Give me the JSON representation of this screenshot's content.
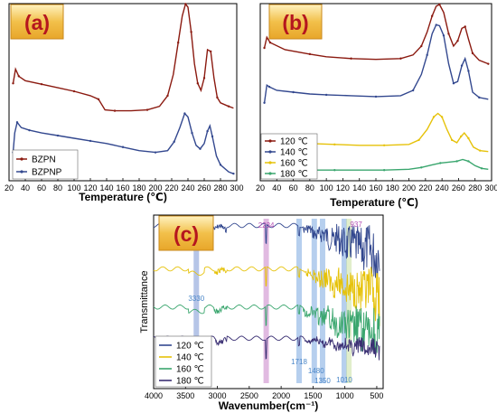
{
  "chart_data": [
    {
      "panel": "(a)",
      "type": "line",
      "xlabel": "Temperature (℃)",
      "ylabel": "",
      "xlim": [
        20,
        300
      ],
      "xticks": [
        20,
        40,
        60,
        80,
        100,
        120,
        140,
        160,
        180,
        200,
        220,
        240,
        260,
        280,
        300
      ],
      "legend": "bottom-left",
      "series": [
        {
          "name": "BZPN",
          "color": "#8b1a10",
          "points": [
            [
              25,
              0.55
            ],
            [
              28,
              0.63
            ],
            [
              32,
              0.59
            ],
            [
              40,
              0.565
            ],
            [
              60,
              0.545
            ],
            [
              80,
              0.525
            ],
            [
              100,
              0.505
            ],
            [
              120,
              0.48
            ],
            [
              130,
              0.46
            ],
            [
              138,
              0.4
            ],
            [
              150,
              0.395
            ],
            [
              170,
              0.395
            ],
            [
              190,
              0.4
            ],
            [
              205,
              0.42
            ],
            [
              215,
              0.48
            ],
            [
              222,
              0.6
            ],
            [
              228,
              0.78
            ],
            [
              233,
              0.93
            ],
            [
              237,
              0.998
            ],
            [
              240,
              0.98
            ],
            [
              244,
              0.84
            ],
            [
              248,
              0.66
            ],
            [
              252,
              0.55
            ],
            [
              256,
              0.51
            ],
            [
              260,
              0.58
            ],
            [
              264,
              0.74
            ],
            [
              268,
              0.73
            ],
            [
              272,
              0.58
            ],
            [
              276,
              0.47
            ],
            [
              280,
              0.44
            ],
            [
              290,
              0.42
            ],
            [
              296,
              0.41
            ]
          ]
        },
        {
          "name": "BZPNP",
          "color": "#33488f",
          "points": [
            [
              25,
              0.16
            ],
            [
              27,
              0.27
            ],
            [
              30,
              0.33
            ],
            [
              35,
              0.3
            ],
            [
              45,
              0.285
            ],
            [
              60,
              0.27
            ],
            [
              80,
              0.255
            ],
            [
              100,
              0.24
            ],
            [
              120,
              0.225
            ],
            [
              140,
              0.21
            ],
            [
              160,
              0.19
            ],
            [
              180,
              0.17
            ],
            [
              200,
              0.16
            ],
            [
              215,
              0.17
            ],
            [
              223,
              0.22
            ],
            [
              230,
              0.3
            ],
            [
              236,
              0.38
            ],
            [
              240,
              0.36
            ],
            [
              245,
              0.27
            ],
            [
              250,
              0.2
            ],
            [
              255,
              0.18
            ],
            [
              260,
              0.21
            ],
            [
              264,
              0.28
            ],
            [
              267,
              0.31
            ],
            [
              270,
              0.25
            ],
            [
              275,
              0.14
            ],
            [
              280,
              0.09
            ],
            [
              290,
              0.05
            ],
            [
              296,
              0.04
            ]
          ]
        }
      ]
    },
    {
      "panel": "(b)",
      "type": "line",
      "xlabel": "Temperature (℃)",
      "ylabel": "",
      "xlim": [
        20,
        300
      ],
      "xticks": [
        20,
        40,
        60,
        80,
        100,
        120,
        140,
        160,
        180,
        200,
        220,
        240,
        260,
        280,
        300
      ],
      "legend": "bottom-left",
      "series": [
        {
          "name": "120 ℃",
          "color": "#8b1a10",
          "points": [
            [
              25,
              0.75
            ],
            [
              28,
              0.81
            ],
            [
              32,
              0.78
            ],
            [
              50,
              0.74
            ],
            [
              80,
              0.715
            ],
            [
              100,
              0.7
            ],
            [
              130,
              0.69
            ],
            [
              160,
              0.685
            ],
            [
              190,
              0.69
            ],
            [
              205,
              0.71
            ],
            [
              215,
              0.76
            ],
            [
              222,
              0.84
            ],
            [
              228,
              0.93
            ],
            [
              233,
              0.985
            ],
            [
              237,
              0.995
            ],
            [
              242,
              0.95
            ],
            [
              248,
              0.83
            ],
            [
              254,
              0.76
            ],
            [
              259,
              0.79
            ],
            [
              264,
              0.86
            ],
            [
              268,
              0.87
            ],
            [
              272,
              0.8
            ],
            [
              277,
              0.72
            ],
            [
              285,
              0.68
            ],
            [
              296,
              0.66
            ]
          ]
        },
        {
          "name": "140 ℃",
          "color": "#33488f",
          "points": [
            [
              25,
              0.44
            ],
            [
              28,
              0.54
            ],
            [
              31,
              0.53
            ],
            [
              40,
              0.51
            ],
            [
              60,
              0.5
            ],
            [
              80,
              0.49
            ],
            [
              100,
              0.485
            ],
            [
              130,
              0.48
            ],
            [
              160,
              0.475
            ],
            [
              190,
              0.48
            ],
            [
              205,
              0.51
            ],
            [
              215,
              0.6
            ],
            [
              222,
              0.71
            ],
            [
              228,
              0.83
            ],
            [
              233,
              0.88
            ],
            [
              237,
              0.875
            ],
            [
              242,
              0.82
            ],
            [
              248,
              0.66
            ],
            [
              254,
              0.55
            ],
            [
              259,
              0.56
            ],
            [
              264,
              0.65
            ],
            [
              268,
              0.69
            ],
            [
              272,
              0.62
            ],
            [
              277,
              0.5
            ],
            [
              285,
              0.47
            ],
            [
              296,
              0.46
            ]
          ]
        },
        {
          "name": "160 ℃",
          "color": "#e6c20a",
          "points": [
            [
              25,
              0.22
            ],
            [
              30,
              0.225
            ],
            [
              50,
              0.215
            ],
            [
              80,
              0.21
            ],
            [
              110,
              0.205
            ],
            [
              140,
              0.2
            ],
            [
              170,
              0.2
            ],
            [
              200,
              0.205
            ],
            [
              212,
              0.23
            ],
            [
              222,
              0.29
            ],
            [
              230,
              0.36
            ],
            [
              235,
              0.38
            ],
            [
              240,
              0.36
            ],
            [
              246,
              0.29
            ],
            [
              252,
              0.23
            ],
            [
              258,
              0.215
            ],
            [
              263,
              0.25
            ],
            [
              267,
              0.27
            ],
            [
              272,
              0.24
            ],
            [
              278,
              0.19
            ],
            [
              286,
              0.17
            ],
            [
              296,
              0.165
            ]
          ]
        },
        {
          "name": "180 ℃",
          "color": "#3aa66e",
          "points": [
            [
              25,
              0.055
            ],
            [
              30,
              0.06
            ],
            [
              50,
              0.06
            ],
            [
              80,
              0.06
            ],
            [
              110,
              0.06
            ],
            [
              140,
              0.06
            ],
            [
              170,
              0.06
            ],
            [
              200,
              0.065
            ],
            [
              215,
              0.075
            ],
            [
              228,
              0.09
            ],
            [
              238,
              0.1
            ],
            [
              248,
              0.105
            ],
            [
              258,
              0.11
            ],
            [
              265,
              0.12
            ],
            [
              272,
              0.11
            ],
            [
              280,
              0.085
            ],
            [
              288,
              0.07
            ],
            [
              296,
              0.065
            ]
          ]
        }
      ]
    },
    {
      "panel": "(c)",
      "type": "line",
      "xlabel": "Wavenumber(cm⁻¹)",
      "ylabel": "Transmittance",
      "xlim": [
        4000,
        400
      ],
      "xticks": [
        4000,
        3500,
        3000,
        2500,
        2000,
        1500,
        1000,
        500
      ],
      "legend": "bottom-left",
      "highlight_bands": [
        {
          "wavenumber": 3330,
          "label": "3330",
          "label_color": "#4a86c8",
          "band_color": "#7a95d4"
        },
        {
          "wavenumber": 2234,
          "label": "2234",
          "label_color": "#b44fb4",
          "band_color": "#c882c8"
        },
        {
          "wavenumber": 1718,
          "label": "1718",
          "label_color": "#4a86c8",
          "band_color": "#7aa7e0"
        },
        {
          "wavenumber": 1480,
          "label": "1480",
          "label_color": "#4a86c8",
          "band_color": "#7aa7e0"
        },
        {
          "wavenumber": 1350,
          "label": "1350",
          "label_color": "#4a86c8",
          "band_color": "#7aa7e0"
        },
        {
          "wavenumber": 1010,
          "label": "1010",
          "label_color": "#4a86c8",
          "band_color": "#7aa7e0"
        },
        {
          "wavenumber": 937,
          "label": "937",
          "label_color": "#b44fb4",
          "band_color": "#c8e0a0"
        }
      ],
      "series": [
        {
          "name": "120 ℃",
          "color": "#33488f"
        },
        {
          "name": "140 ℃",
          "color": "#e6c20a"
        },
        {
          "name": "160 ℃",
          "color": "#3aa66e"
        },
        {
          "name": "180 ℃",
          "color": "#3a2f73"
        }
      ]
    }
  ],
  "panel_labels": [
    "(a)",
    "(b)",
    "(c)"
  ],
  "colors": {
    "panel_label_bg": "#f2c04a",
    "panel_label_text": "#b5161e"
  }
}
